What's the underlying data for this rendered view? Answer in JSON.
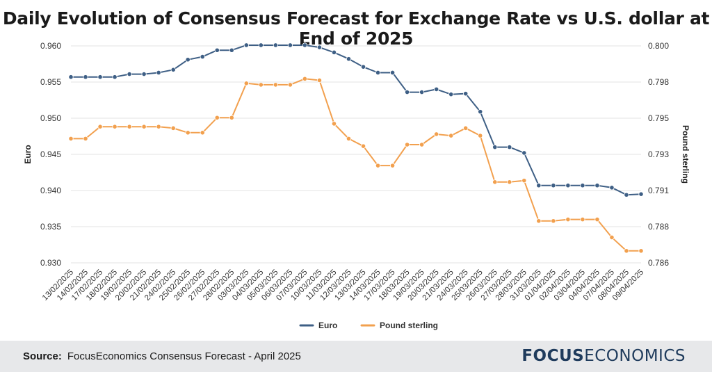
{
  "title": "Daily Evolution of Consensus Forecast for Exchange Rate vs U.S. dollar at End of 2025",
  "footer": {
    "source_label": "Source:",
    "source_text": "FocusEconomics Consensus Forecast - April 2025",
    "logo_part1": "FOCUS",
    "logo_part2": "ECONOMICS"
  },
  "colors": {
    "euro": "#3e5f85",
    "pound": "#f2a04e",
    "grid": "#e3e3e3",
    "text": "#333333"
  },
  "chart_data": {
    "type": "line",
    "title": "Daily Evolution of Consensus Forecast for Exchange Rate vs U.S. dollar at End of 2025",
    "categories": [
      "13/02/2025",
      "14/02/2025",
      "17/02/2025",
      "18/02/2025",
      "19/02/2025",
      "20/02/2025",
      "21/02/2025",
      "24/02/2025",
      "25/02/2025",
      "26/02/2025",
      "27/02/2025",
      "28/02/2025",
      "03/03/2025",
      "04/03/2025",
      "05/03/2025",
      "06/03/2025",
      "07/03/2025",
      "10/03/2025",
      "11/03/2025",
      "12/03/2025",
      "13/03/2025",
      "14/03/2025",
      "17/03/2025",
      "18/03/2025",
      "19/03/2025",
      "20/03/2025",
      "21/03/2025",
      "24/03/2025",
      "25/03/2025",
      "26/03/2025",
      "27/03/2025",
      "28/03/2025",
      "31/03/2025",
      "01/04/2025",
      "02/04/2025",
      "03/04/2025",
      "04/04/2025",
      "07/04/2025",
      "08/04/2025",
      "09/04/2025"
    ],
    "y_left": {
      "label": "Euro",
      "ylim": [
        0.93,
        0.96
      ],
      "ticks": [
        "0.960",
        "0.955",
        "0.950",
        "0.945",
        "0.940",
        "0.935",
        "0.930"
      ]
    },
    "y_right": {
      "label": "Pound sterling",
      "ylim": [
        0.7855,
        0.8
      ],
      "ticks": [
        "0.800",
        "0.798",
        "0.795",
        "0.793",
        "0.791",
        "0.788",
        "0.786"
      ]
    },
    "legend": "bottom-center",
    "series": [
      {
        "name": "Euro",
        "axis": "left",
        "color": "#3e5f85",
        "values": [
          0.9557,
          0.9557,
          0.9557,
          0.9557,
          0.9561,
          0.9561,
          0.9563,
          0.9567,
          0.9581,
          0.9585,
          0.9594,
          0.9594,
          0.9601,
          0.9601,
          0.9601,
          0.9601,
          0.9601,
          0.9598,
          0.9591,
          0.9582,
          0.9571,
          0.9563,
          0.9563,
          0.9536,
          0.9536,
          0.954,
          0.9533,
          0.9534,
          0.9509,
          0.946,
          0.946,
          0.9452,
          0.9407,
          0.9407,
          0.9407,
          0.9407,
          0.9407,
          0.9404,
          0.9394,
          0.9395
        ]
      },
      {
        "name": "Pound sterling",
        "axis": "right",
        "color": "#f2a04e",
        "values": [
          0.7938,
          0.7938,
          0.7946,
          0.7946,
          0.7946,
          0.7946,
          0.7946,
          0.7945,
          0.7942,
          0.7942,
          0.7952,
          0.7952,
          0.7975,
          0.7974,
          0.7974,
          0.7974,
          0.7978,
          0.7977,
          0.7948,
          0.7938,
          0.7933,
          0.792,
          0.792,
          0.7934,
          0.7934,
          0.7941,
          0.794,
          0.7945,
          0.794,
          0.7909,
          0.7909,
          0.791,
          0.7883,
          0.7883,
          0.7884,
          0.7884,
          0.7884,
          0.7872,
          0.7863,
          0.7863
        ]
      }
    ]
  }
}
